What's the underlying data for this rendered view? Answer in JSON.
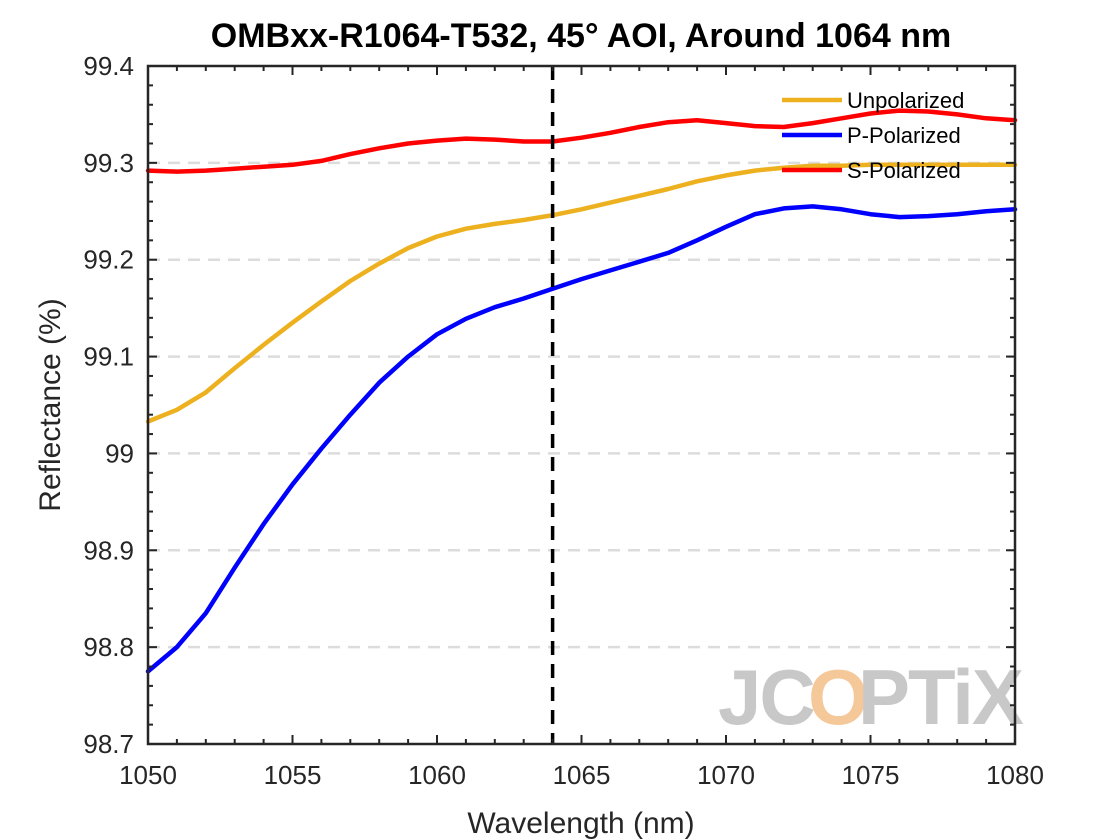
{
  "chart_data": {
    "type": "line",
    "title": "OMBxx-R1064-T532, 45° AOI, Around 1064 nm",
    "xlabel": "Wavelength (nm)",
    "ylabel": "Reflectance (%)",
    "xlim": [
      1050,
      1080
    ],
    "ylim": [
      98.7,
      99.4
    ],
    "xticks": [
      1050,
      1055,
      1060,
      1065,
      1070,
      1075,
      1080
    ],
    "yticks": [
      98.7,
      98.8,
      98.9,
      99,
      99.1,
      99.2,
      99.3,
      99.4
    ],
    "xtick_labels": [
      "1050",
      "1055",
      "1060",
      "1065",
      "1070",
      "1075",
      "1080"
    ],
    "ytick_labels": [
      "98.7",
      "98.8",
      "98.9",
      "99",
      "99.1",
      "99.2",
      "99.3",
      "99.4"
    ],
    "grid": "horizontal dashed",
    "legend_position": "top-right",
    "vline": {
      "x": 1064,
      "style": "dashed",
      "color": "#000000"
    },
    "x": [
      1050,
      1051,
      1052,
      1053,
      1054,
      1055,
      1056,
      1057,
      1058,
      1059,
      1060,
      1061,
      1062,
      1063,
      1064,
      1065,
      1066,
      1067,
      1068,
      1069,
      1070,
      1071,
      1072,
      1073,
      1074,
      1075,
      1076,
      1077,
      1078,
      1079,
      1080
    ],
    "series": [
      {
        "name": "Unpolarized",
        "color": "#EDB120",
        "values": [
          99.033,
          99.045,
          99.063,
          99.088,
          99.112,
          99.135,
          99.157,
          99.178,
          99.196,
          99.212,
          99.224,
          99.232,
          99.237,
          99.241,
          99.246,
          99.252,
          99.259,
          99.266,
          99.273,
          99.281,
          99.287,
          99.292,
          99.295,
          99.297,
          99.297,
          99.298,
          99.298,
          99.298,
          99.298,
          99.298,
          99.298
        ]
      },
      {
        "name": "P-Polarized",
        "color": "#0000FF",
        "values": [
          98.775,
          98.8,
          98.835,
          98.882,
          98.927,
          98.968,
          99.005,
          99.04,
          99.073,
          99.1,
          99.123,
          99.139,
          99.151,
          99.16,
          99.17,
          99.18,
          99.189,
          99.198,
          99.207,
          99.22,
          99.234,
          99.247,
          99.253,
          99.255,
          99.252,
          99.247,
          99.244,
          99.245,
          99.247,
          99.25,
          99.252
        ]
      },
      {
        "name": "S-Polarized",
        "color": "#FF0000",
        "values": [
          99.292,
          99.291,
          99.292,
          99.294,
          99.296,
          99.298,
          99.302,
          99.309,
          99.315,
          99.32,
          99.323,
          99.325,
          99.324,
          99.322,
          99.322,
          99.326,
          99.331,
          99.337,
          99.342,
          99.344,
          99.341,
          99.338,
          99.337,
          99.341,
          99.346,
          99.351,
          99.354,
          99.353,
          99.35,
          99.346,
          99.344
        ]
      }
    ]
  },
  "watermark": {
    "left": "JC",
    "o": "O",
    "right": "PTiX",
    "color": "#c8c8c8",
    "accent_color": "#f5c89a"
  }
}
